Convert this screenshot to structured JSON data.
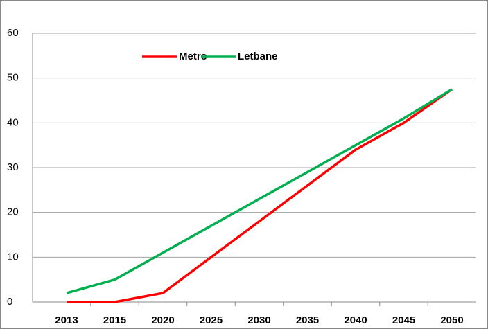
{
  "chart_data": {
    "type": "line",
    "categories": [
      "2013",
      "2015",
      "2020",
      "2025",
      "2030",
      "2035",
      "2040",
      "2045",
      "2050"
    ],
    "series": [
      {
        "name": "Metro",
        "color": "#ff0000",
        "values": [
          0,
          0,
          2,
          10,
          18,
          26,
          34,
          40,
          47.5
        ]
      },
      {
        "name": "Letbane",
        "color": "#00b050",
        "values": [
          2,
          5,
          11,
          17,
          23,
          29,
          35,
          41,
          47.5
        ]
      }
    ],
    "ylim": [
      0,
      60
    ],
    "yticks": [
      0,
      10,
      20,
      30,
      40,
      50,
      60
    ],
    "grid": true,
    "legend": "top"
  }
}
